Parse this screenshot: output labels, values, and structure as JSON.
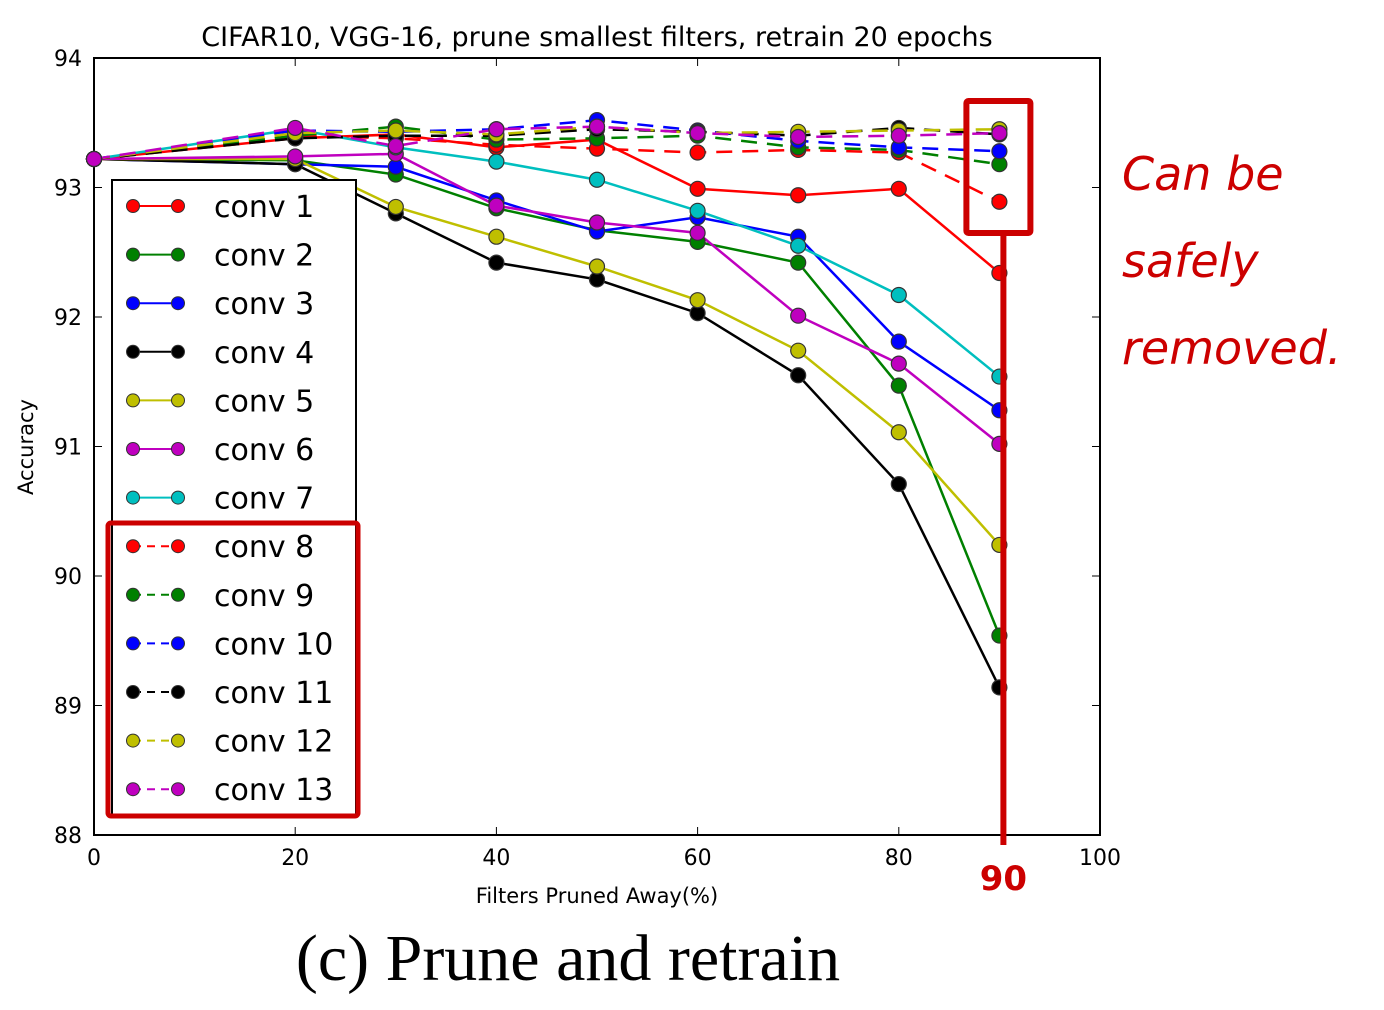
{
  "chart_data": {
    "type": "line",
    "title": "CIFAR10, VGG-16, prune smallest filters, retrain 20 epochs",
    "xlabel": "Filters Pruned Away(%)",
    "ylabel": "Accuracy",
    "xlim": [
      0,
      100
    ],
    "ylim": [
      88,
      94
    ],
    "xticks": [
      "0",
      "20",
      "40",
      "60",
      "80",
      "100"
    ],
    "yticks": [
      "88",
      "89",
      "90",
      "91",
      "92",
      "93",
      "94"
    ],
    "xtick_values": [
      0,
      20,
      40,
      60,
      80,
      100
    ],
    "ytick_values": [
      88,
      89,
      90,
      91,
      92,
      93,
      94
    ],
    "grid": false,
    "legend_position": "left",
    "x": [
      0,
      20,
      30,
      40,
      50,
      60,
      70,
      80,
      90
    ],
    "series": [
      {
        "name": "conv 1",
        "color": "#ff0000",
        "style": "solid",
        "values": [
          93.22,
          93.38,
          93.41,
          93.31,
          93.37,
          92.99,
          92.94,
          92.99,
          92.34
        ]
      },
      {
        "name": "conv 2",
        "color": "#008000",
        "style": "solid",
        "values": [
          93.22,
          93.21,
          93.1,
          92.84,
          92.67,
          92.58,
          92.42,
          91.47,
          89.54
        ]
      },
      {
        "name": "conv 3",
        "color": "#0000ff",
        "style": "solid",
        "values": [
          93.22,
          93.18,
          93.16,
          92.9,
          92.66,
          92.77,
          92.62,
          91.81,
          91.28
        ]
      },
      {
        "name": "conv 4",
        "color": "#000000",
        "style": "solid",
        "values": [
          93.22,
          93.18,
          92.8,
          92.42,
          92.29,
          92.03,
          91.55,
          90.71,
          89.14
        ]
      },
      {
        "name": "conv 5",
        "color": "#bfbf00",
        "style": "solid",
        "values": [
          93.22,
          93.22,
          92.85,
          92.62,
          92.39,
          92.13,
          91.74,
          91.11,
          90.24
        ]
      },
      {
        "name": "conv 6",
        "color": "#bf00bf",
        "style": "solid",
        "values": [
          93.22,
          93.24,
          93.26,
          92.86,
          92.73,
          92.65,
          92.01,
          91.64,
          91.02
        ]
      },
      {
        "name": "conv 7",
        "color": "#00bfbf",
        "style": "solid",
        "values": [
          93.22,
          93.45,
          93.31,
          93.2,
          93.06,
          92.82,
          92.55,
          92.17,
          91.54
        ]
      },
      {
        "name": "conv 8",
        "color": "#ff0000",
        "style": "dashed",
        "values": [
          93.22,
          93.4,
          93.38,
          93.33,
          93.3,
          93.27,
          93.29,
          93.27,
          92.89
        ]
      },
      {
        "name": "conv 9",
        "color": "#008000",
        "style": "dashed",
        "values": [
          93.22,
          93.4,
          93.47,
          93.37,
          93.38,
          93.4,
          93.31,
          93.29,
          93.18
        ]
      },
      {
        "name": "conv 10",
        "color": "#0000ff",
        "style": "dashed",
        "values": [
          93.22,
          93.44,
          93.43,
          93.45,
          93.52,
          93.44,
          93.36,
          93.31,
          93.28
        ]
      },
      {
        "name": "conv 11",
        "color": "#000000",
        "style": "dashed",
        "values": [
          93.22,
          93.38,
          93.4,
          93.4,
          93.45,
          93.43,
          93.4,
          93.46,
          93.41
        ]
      },
      {
        "name": "conv 12",
        "color": "#bfbf00",
        "style": "dashed",
        "values": [
          93.22,
          93.42,
          93.44,
          93.41,
          93.47,
          93.42,
          93.43,
          93.44,
          93.45
        ]
      },
      {
        "name": "conv 13",
        "color": "#bf00bf",
        "style": "dashed",
        "values": [
          93.22,
          93.46,
          93.32,
          93.45,
          93.47,
          93.42,
          93.39,
          93.4,
          93.42
        ]
      }
    ],
    "annotations": {
      "handwritten_note": [
        "Can be",
        "safely",
        "removed."
      ],
      "handwritten_x_label": "90",
      "highlight_x": 90,
      "annotation_color": "#cc0000"
    }
  },
  "caption": "(c) Prune and retrain"
}
